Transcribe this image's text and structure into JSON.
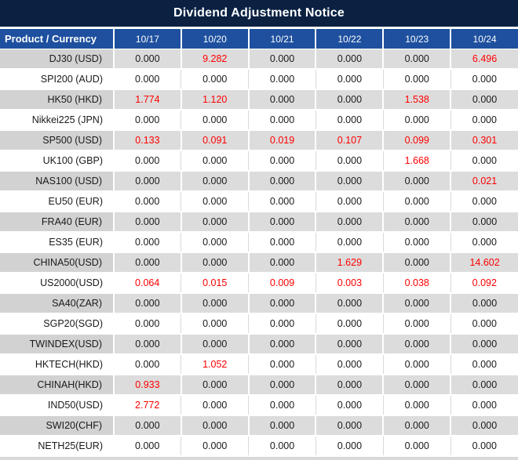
{
  "title": "Dividend Adjustment Notice",
  "colors": {
    "title_bar_bg": "#0a2142",
    "header_bg": "#1e509f",
    "gray_row_bg": "#dcdcdc",
    "gray_product_cell_bg": "#d2d2d2",
    "highlight_value": "#fe0000",
    "normal_value": "#1a1a1a"
  },
  "table": {
    "product_header": "Product / Currency",
    "date_headers": [
      "10/17",
      "10/20",
      "10/21",
      "10/22",
      "10/23",
      "10/24"
    ],
    "rows": [
      {
        "product": "DJ30 (USD)",
        "values": [
          "0.000",
          "9.282",
          "0.000",
          "0.000",
          "0.000",
          "6.496"
        ],
        "red": [
          false,
          true,
          false,
          false,
          false,
          true
        ]
      },
      {
        "product": "SPI200 (AUD)",
        "values": [
          "0.000",
          "0.000",
          "0.000",
          "0.000",
          "0.000",
          "0.000"
        ],
        "red": [
          false,
          false,
          false,
          false,
          false,
          false
        ]
      },
      {
        "product": "HK50 (HKD)",
        "values": [
          "1.774",
          "1.120",
          "0.000",
          "0.000",
          "1.538",
          "0.000"
        ],
        "red": [
          true,
          true,
          false,
          false,
          true,
          false
        ]
      },
      {
        "product": "Nikkei225 (JPN)",
        "values": [
          "0.000",
          "0.000",
          "0.000",
          "0.000",
          "0.000",
          "0.000"
        ],
        "red": [
          false,
          false,
          false,
          false,
          false,
          false
        ]
      },
      {
        "product": "SP500 (USD)",
        "values": [
          "0.133",
          "0.091",
          "0.019",
          "0.107",
          "0.099",
          "0.301"
        ],
        "red": [
          true,
          true,
          true,
          true,
          true,
          true
        ]
      },
      {
        "product": "UK100 (GBP)",
        "values": [
          "0.000",
          "0.000",
          "0.000",
          "0.000",
          "1.668",
          "0.000"
        ],
        "red": [
          false,
          false,
          false,
          false,
          true,
          false
        ]
      },
      {
        "product": "NAS100 (USD)",
        "values": [
          "0.000",
          "0.000",
          "0.000",
          "0.000",
          "0.000",
          "0.021"
        ],
        "red": [
          false,
          false,
          false,
          false,
          false,
          true
        ]
      },
      {
        "product": "EU50 (EUR)",
        "values": [
          "0.000",
          "0.000",
          "0.000",
          "0.000",
          "0.000",
          "0.000"
        ],
        "red": [
          false,
          false,
          false,
          false,
          false,
          false
        ]
      },
      {
        "product": "FRA40 (EUR)",
        "values": [
          "0.000",
          "0.000",
          "0.000",
          "0.000",
          "0.000",
          "0.000"
        ],
        "red": [
          false,
          false,
          false,
          false,
          false,
          false
        ]
      },
      {
        "product": "ES35 (EUR)",
        "values": [
          "0.000",
          "0.000",
          "0.000",
          "0.000",
          "0.000",
          "0.000"
        ],
        "red": [
          false,
          false,
          false,
          false,
          false,
          false
        ]
      },
      {
        "product": "CHINA50(USD)",
        "values": [
          "0.000",
          "0.000",
          "0.000",
          "1.629",
          "0.000",
          "14.602"
        ],
        "red": [
          false,
          false,
          false,
          true,
          false,
          true
        ]
      },
      {
        "product": "US2000(USD)",
        "values": [
          "0.064",
          "0.015",
          "0.009",
          "0.003",
          "0.038",
          "0.092"
        ],
        "red": [
          true,
          true,
          true,
          true,
          true,
          true
        ]
      },
      {
        "product": "SA40(ZAR)",
        "values": [
          "0.000",
          "0.000",
          "0.000",
          "0.000",
          "0.000",
          "0.000"
        ],
        "red": [
          false,
          false,
          false,
          false,
          false,
          false
        ]
      },
      {
        "product": "SGP20(SGD)",
        "values": [
          "0.000",
          "0.000",
          "0.000",
          "0.000",
          "0.000",
          "0.000"
        ],
        "red": [
          false,
          false,
          false,
          false,
          false,
          false
        ]
      },
      {
        "product": "TWINDEX(USD)",
        "values": [
          "0.000",
          "0.000",
          "0.000",
          "0.000",
          "0.000",
          "0.000"
        ],
        "red": [
          false,
          false,
          false,
          false,
          false,
          false
        ]
      },
      {
        "product": "HKTECH(HKD)",
        "values": [
          "0.000",
          "1.052",
          "0.000",
          "0.000",
          "0.000",
          "0.000"
        ],
        "red": [
          false,
          true,
          false,
          false,
          false,
          false
        ]
      },
      {
        "product": "CHINAH(HKD)",
        "values": [
          "0.933",
          "0.000",
          "0.000",
          "0.000",
          "0.000",
          "0.000"
        ],
        "red": [
          true,
          false,
          false,
          false,
          false,
          false
        ]
      },
      {
        "product": "IND50(USD)",
        "values": [
          "2.772",
          "0.000",
          "0.000",
          "0.000",
          "0.000",
          "0.000"
        ],
        "red": [
          true,
          false,
          false,
          false,
          false,
          false
        ]
      },
      {
        "product": "SWI20(CHF)",
        "values": [
          "0.000",
          "0.000",
          "0.000",
          "0.000",
          "0.000",
          "0.000"
        ],
        "red": [
          false,
          false,
          false,
          false,
          false,
          false
        ]
      },
      {
        "product": "NETH25(EUR)",
        "values": [
          "0.000",
          "0.000",
          "0.000",
          "0.000",
          "0.000",
          "0.000"
        ],
        "red": [
          false,
          false,
          false,
          false,
          false,
          false
        ]
      }
    ]
  }
}
